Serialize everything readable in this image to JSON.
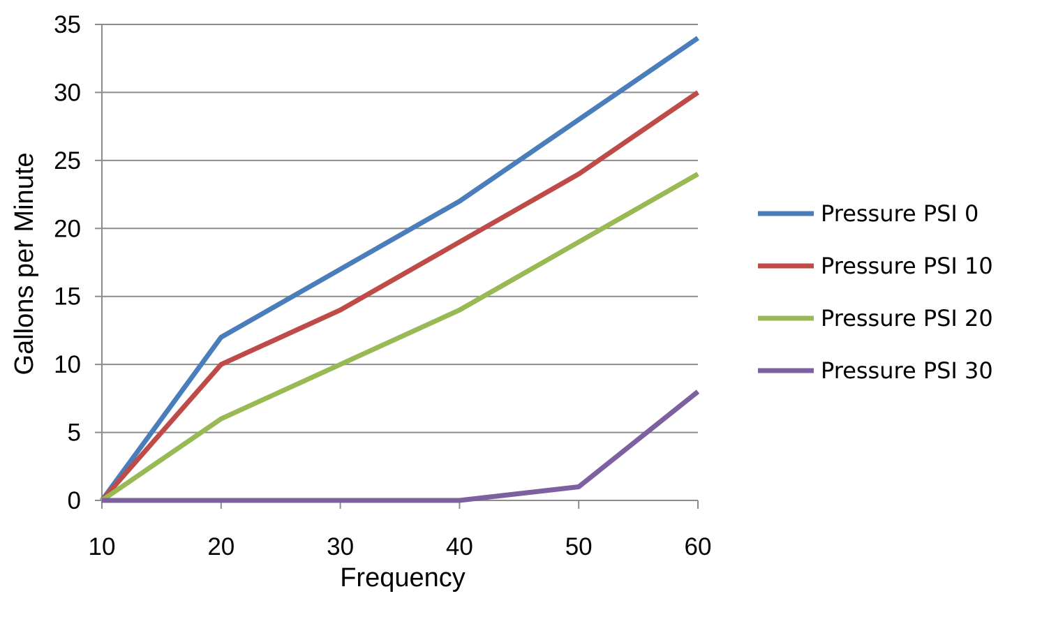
{
  "chart_data": {
    "type": "line",
    "title": "",
    "xlabel": "Frequency",
    "ylabel": "Gallons per Minute",
    "x": [
      10,
      20,
      30,
      40,
      50,
      60
    ],
    "x_tick_labels": [
      "10",
      "20",
      "30",
      "40",
      "50",
      "60"
    ],
    "xlim": [
      10,
      60
    ],
    "ylim": [
      0,
      35
    ],
    "y_ticks": [
      0,
      5,
      10,
      15,
      20,
      25,
      30,
      35
    ],
    "y_tick_labels": [
      "0",
      "5",
      "10",
      "15",
      "20",
      "25",
      "30",
      "35"
    ],
    "grid": "horizontal",
    "legend_position": "right",
    "series": [
      {
        "name": "Pressure PSI 0",
        "color": "#4A7EBB",
        "values": [
          0,
          12,
          17,
          22,
          28,
          34
        ]
      },
      {
        "name": "Pressure PSI 10",
        "color": "#BE4B48",
        "values": [
          0,
          10,
          14,
          19,
          24,
          30
        ]
      },
      {
        "name": "Pressure PSI 20",
        "color": "#98B954",
        "values": [
          0,
          6,
          10,
          14,
          19,
          24
        ]
      },
      {
        "name": "Pressure PSI 30",
        "color": "#7D60A0",
        "values": [
          0,
          0,
          0,
          0,
          1,
          8
        ]
      }
    ]
  }
}
